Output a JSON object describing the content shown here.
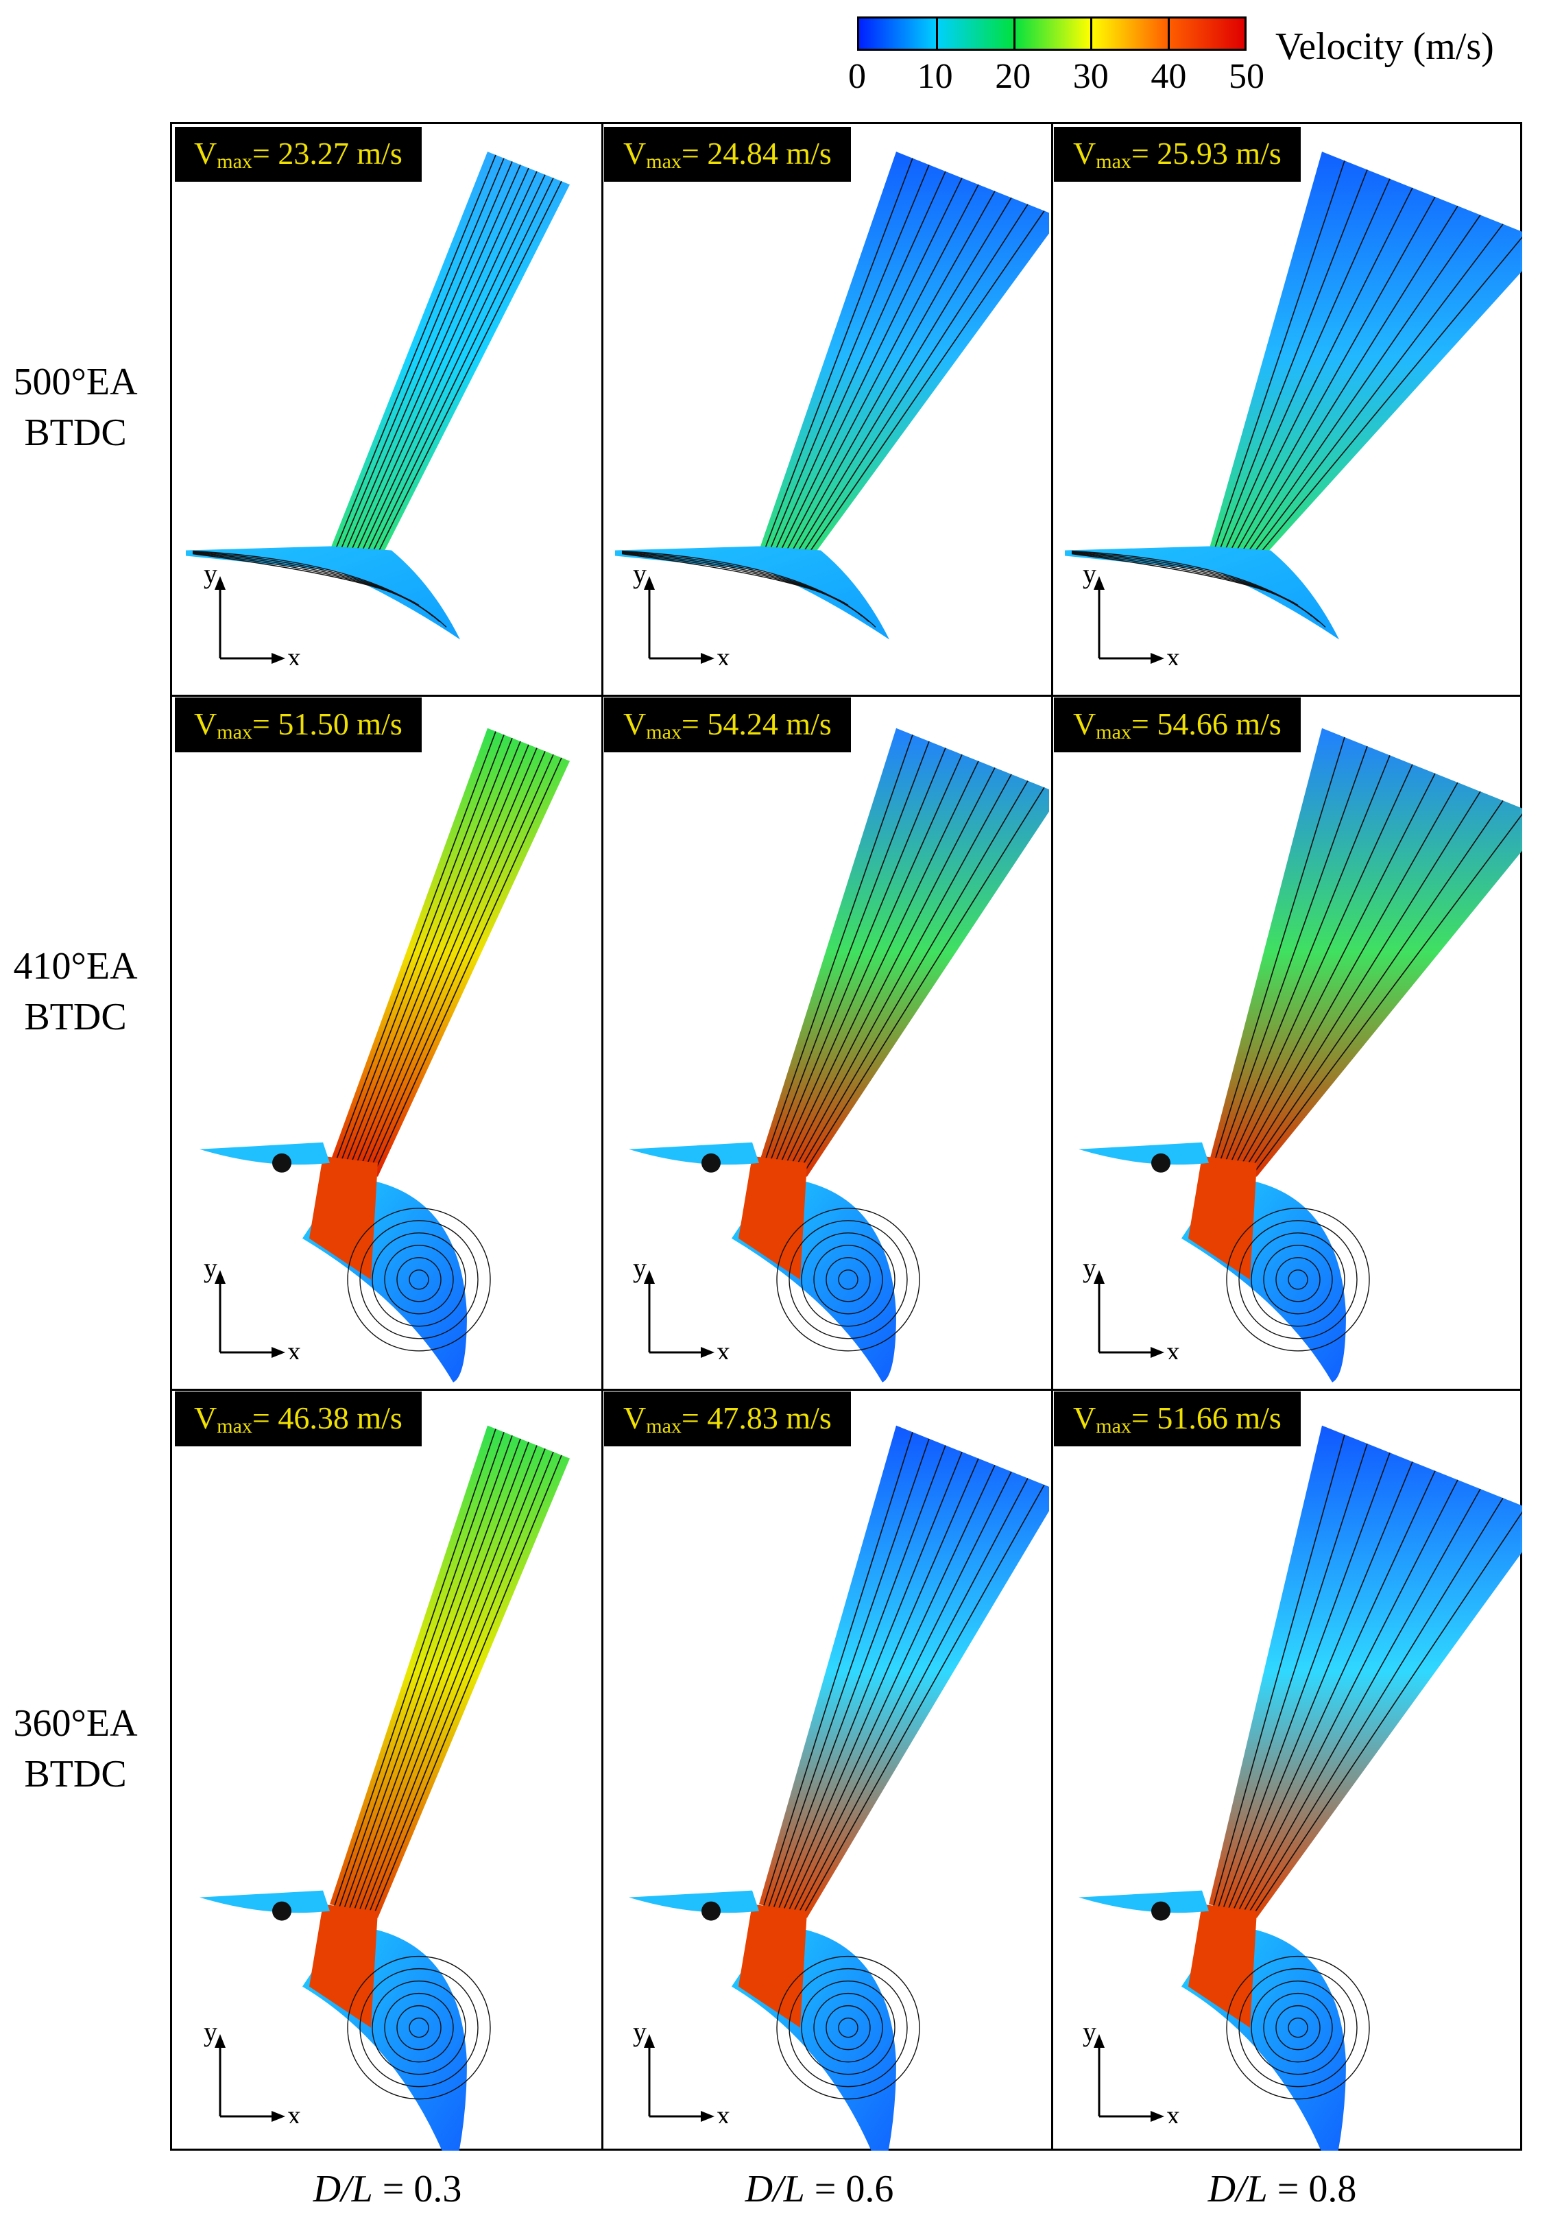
{
  "colorbar": {
    "title": "Velocity (m/s)",
    "ticks": [
      "0",
      "10",
      "20",
      "30",
      "40",
      "50"
    ],
    "colors": [
      "#0020ff",
      "#00d0ff",
      "#00e040",
      "#ffff00",
      "#ff6000",
      "#e00000"
    ]
  },
  "rows": [
    {
      "label_line1": "500°EA",
      "label_line2": "BTDC"
    },
    {
      "label_line1": "410°EA",
      "label_line2": "BTDC"
    },
    {
      "label_line1": "360°EA",
      "label_line2": "BTDC"
    }
  ],
  "columns": [
    {
      "var": "D/L",
      "eq": " = 0.3"
    },
    {
      "var": "D/L",
      "eq": " = 0.6"
    },
    {
      "var": "D/L",
      "eq": " = 0.8"
    }
  ],
  "panels": [
    [
      {
        "vmax_label": "V",
        "vmax_sub": "max",
        "vmax_value": "= 23.27 m/s",
        "vmax": 23.27
      },
      {
        "vmax_label": "V",
        "vmax_sub": "max",
        "vmax_value": "= 24.84 m/s",
        "vmax": 24.84
      },
      {
        "vmax_label": "V",
        "vmax_sub": "max",
        "vmax_value": "= 25.93 m/s",
        "vmax": 25.93
      }
    ],
    [
      {
        "vmax_label": "V",
        "vmax_sub": "max",
        "vmax_value": "= 51.50 m/s",
        "vmax": 51.5
      },
      {
        "vmax_label": "V",
        "vmax_sub": "max",
        "vmax_value": "= 54.24 m/s",
        "vmax": 54.24
      },
      {
        "vmax_label": "V",
        "vmax_sub": "max",
        "vmax_value": "= 54.66 m/s",
        "vmax": 54.66
      }
    ],
    [
      {
        "vmax_label": "V",
        "vmax_sub": "max",
        "vmax_value": "= 46.38 m/s",
        "vmax": 46.38
      },
      {
        "vmax_label": "V",
        "vmax_sub": "max",
        "vmax_value": "= 47.83 m/s",
        "vmax": 47.83
      },
      {
        "vmax_label": "V",
        "vmax_sub": "max",
        "vmax_value": "= 51.66 m/s",
        "vmax": 51.66
      }
    ]
  ],
  "axes": {
    "x": "x",
    "y": "y"
  }
}
